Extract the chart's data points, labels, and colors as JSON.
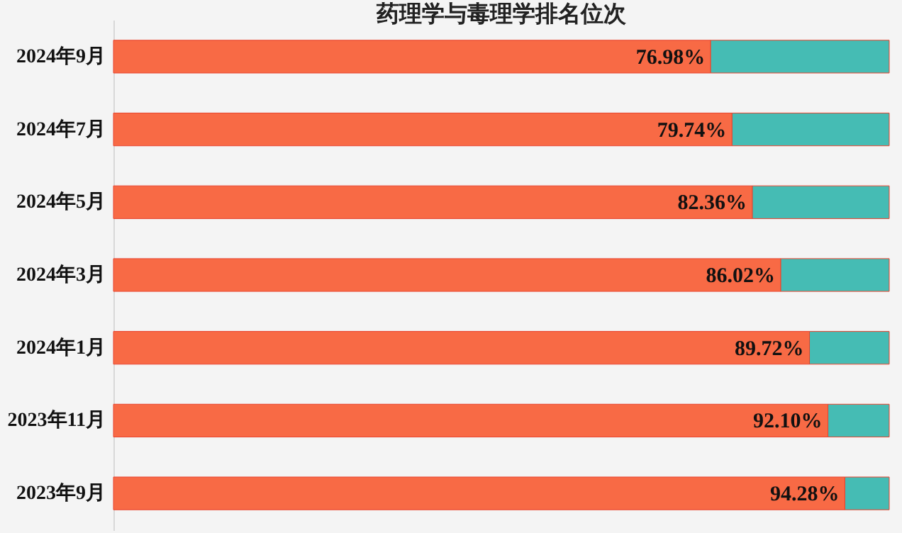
{
  "chart_data": {
    "type": "bar",
    "orientation": "horizontal",
    "stacked": true,
    "title": "药理学与毒理学排名位次",
    "categories": [
      "2024年9月",
      "2024年7月",
      "2024年5月",
      "2024年3月",
      "2024年1月",
      "2023年11月",
      "2023年9月"
    ],
    "series": [
      {
        "color": "#f86a45",
        "values": [
          76.98,
          79.74,
          82.36,
          86.02,
          89.72,
          92.1,
          94.28
        ],
        "value_labels": [
          "76.98%",
          "79.74%",
          "82.36%",
          "86.02%",
          "89.72%",
          "92.10%",
          "94.28%"
        ]
      },
      {
        "color": "#45bcb4",
        "values": [
          23.02,
          20.26,
          17.64,
          13.98,
          10.28,
          7.9,
          5.72
        ]
      }
    ],
    "xlim": [
      0,
      100
    ],
    "tick_labels": "y",
    "grid": false,
    "legend": false
  }
}
